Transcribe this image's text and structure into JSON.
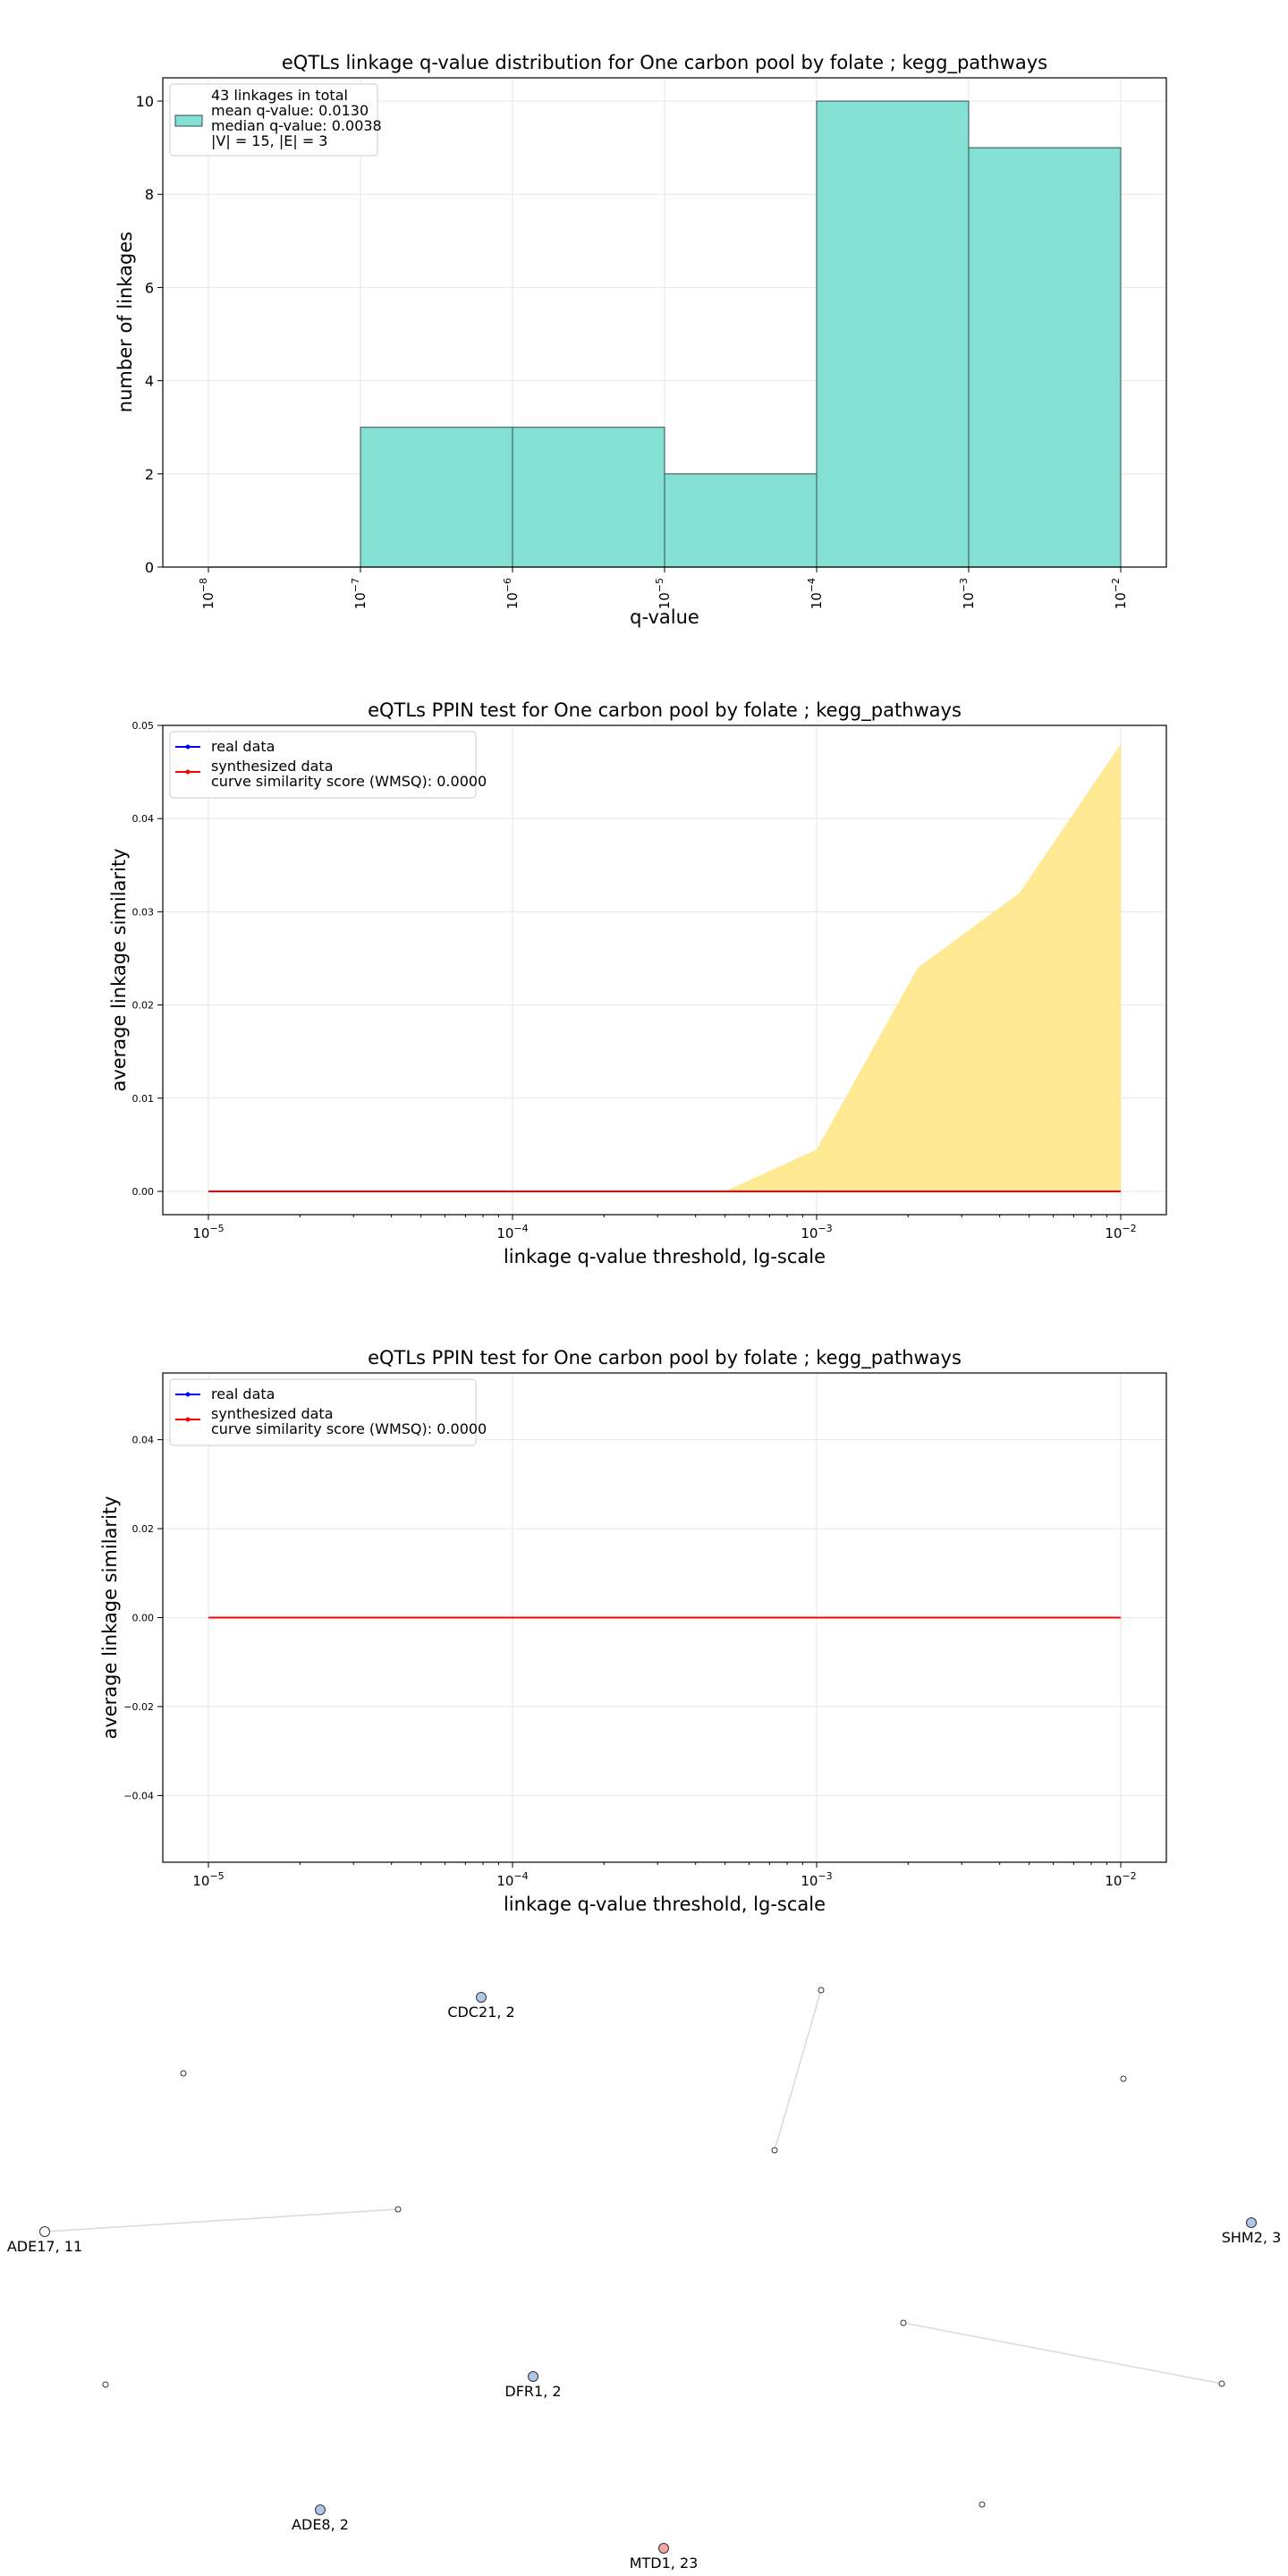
{
  "chart_data": [
    {
      "type": "bar",
      "title": "eQTLs linkage q-value distribution for One carbon pool by folate ; kegg_pathways",
      "xlabel": "q-value",
      "ylabel": "number of linkages",
      "x_scale": "log",
      "x_ticks": [
        -8,
        -7,
        -6,
        -5,
        -4,
        -3,
        -2
      ],
      "ylim": [
        0,
        10.5
      ],
      "y_ticks": [
        0,
        2,
        4,
        6,
        8,
        10
      ],
      "bins": [
        {
          "from": -8,
          "to": -7,
          "count": 0
        },
        {
          "from": -7,
          "to": -6,
          "count": 3
        },
        {
          "from": -6,
          "to": -5,
          "count": 3
        },
        {
          "from": -5,
          "to": -4,
          "count": 2
        },
        {
          "from": -4,
          "to": -3,
          "count": 10
        },
        {
          "from": -3,
          "to": -2,
          "count": 9
        }
      ],
      "bar_color": "#83e0d2",
      "grid": true,
      "legend_position": "top-left",
      "legend": [
        "43 linkages in total",
        "mean q-value: 0.0130",
        "median q-value: 0.0038",
        "|V| = 15, |E| = 3"
      ]
    },
    {
      "type": "line",
      "title": "eQTLs PPIN test for One carbon pool by folate ; kegg_pathways",
      "xlabel": "linkage q-value threshold, lg-scale",
      "ylabel": "average linkage similarity",
      "x_scale": "log",
      "x_ticks": [
        -5,
        -4,
        -3,
        -2
      ],
      "ylim": [
        -0.0025,
        0.05
      ],
      "y_ticks": [
        "0.00",
        "0.01",
        "0.02",
        "0.03",
        "0.04",
        "0.05"
      ],
      "y_tick_values": [
        0,
        0.01,
        0.02,
        0.03,
        0.04,
        0.05
      ],
      "series": [
        {
          "name": "real data",
          "color": "#0000ff",
          "x": [
            1e-05,
            0.01
          ],
          "y": [
            0,
            0
          ]
        },
        {
          "name": "synthesized data",
          "color": "#ff0000",
          "x": [
            1e-05,
            0.01
          ],
          "y": [
            0,
            0
          ]
        }
      ],
      "area": {
        "color": "#ffe680",
        "x": [
          1e-05,
          0.0005,
          0.001,
          0.00215,
          0.00464,
          0.01
        ],
        "y": [
          0,
          0,
          0.0045,
          0.024,
          0.032,
          0.048
        ]
      },
      "grid": true,
      "legend_position": "top-left",
      "legend": [
        "real data",
        "synthesized data",
        "curve similarity score (WMSQ): 0.0000"
      ]
    },
    {
      "type": "line",
      "title": "eQTLs PPIN test for One carbon pool by folate ; kegg_pathways",
      "xlabel": "linkage q-value threshold, lg-scale",
      "ylabel": "average linkage similarity",
      "x_scale": "log",
      "x_ticks": [
        -5,
        -4,
        -3,
        -2
      ],
      "ylim": [
        -0.055,
        0.055
      ],
      "y_ticks": [
        "−0.04",
        "−0.02",
        "0.00",
        "0.02",
        "0.04"
      ],
      "y_tick_values": [
        -0.04,
        -0.02,
        0,
        0.02,
        0.04
      ],
      "series": [
        {
          "name": "real data",
          "color": "#0000ff",
          "x": [
            1e-05,
            0.01
          ],
          "y": [
            0,
            0
          ]
        },
        {
          "name": "synthesized data",
          "color": "#ff0000",
          "x": [
            1e-05,
            0.01
          ],
          "y": [
            0,
            0
          ]
        }
      ],
      "grid": true,
      "legend_position": "top-left",
      "legend": [
        "real data",
        "synthesized data",
        "curve similarity score (WMSQ): 0.0000"
      ]
    }
  ],
  "network": {
    "nodes": [
      {
        "id": "cdc21",
        "label": "CDC21, 2",
        "color": "#aec7e8"
      },
      {
        "id": "shm2",
        "label": "SHM2, 3",
        "color": "#aec7e8"
      },
      {
        "id": "ade17",
        "label": "ADE17, 11",
        "color": "#ffffff"
      },
      {
        "id": "dfr1",
        "label": "DFR1, 2",
        "color": "#aec7e8"
      },
      {
        "id": "ade8",
        "label": "ADE8, 2",
        "color": "#aec7e8"
      },
      {
        "id": "mtd1",
        "label": "MTD1, 23",
        "color": "#f4a4a4"
      },
      {
        "id": "n1",
        "label": ""
      },
      {
        "id": "n2",
        "label": ""
      },
      {
        "id": "n3",
        "label": ""
      },
      {
        "id": "n4",
        "label": ""
      },
      {
        "id": "n5",
        "label": ""
      },
      {
        "id": "n6",
        "label": ""
      },
      {
        "id": "n7",
        "label": ""
      },
      {
        "id": "n8",
        "label": ""
      },
      {
        "id": "n9",
        "label": ""
      }
    ],
    "edges": [
      [
        "n1",
        "n3"
      ],
      [
        "ade17",
        "n4"
      ],
      [
        "n6",
        "n7"
      ]
    ]
  }
}
